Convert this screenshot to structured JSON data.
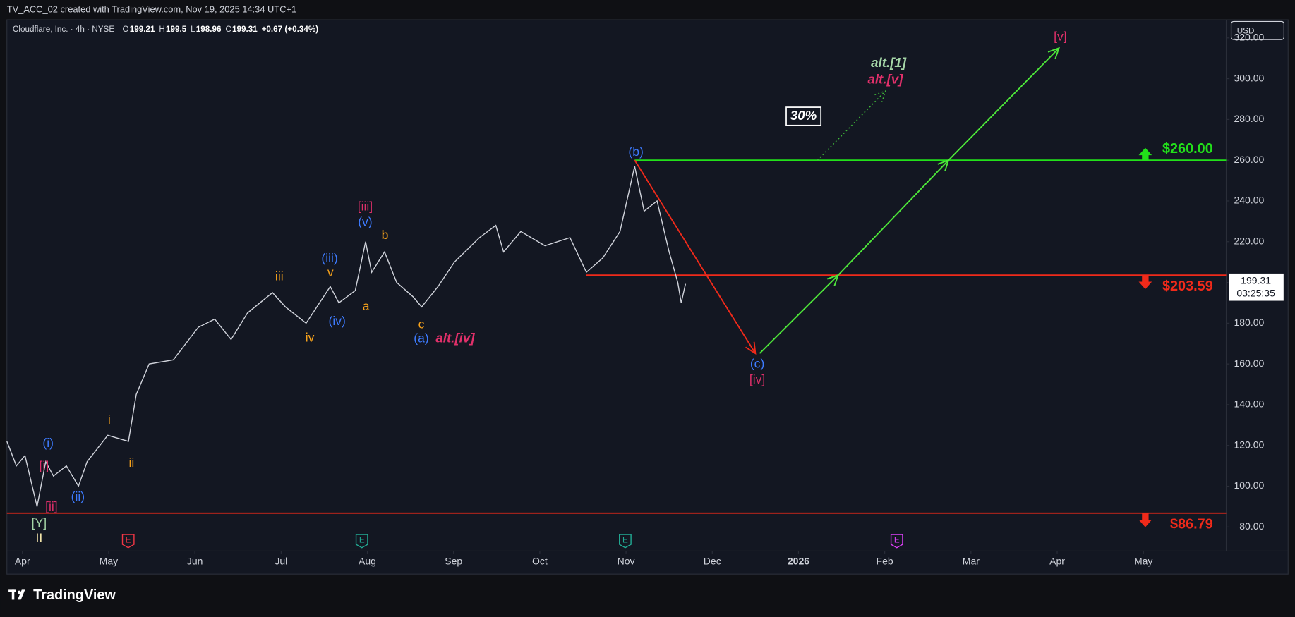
{
  "header": {
    "caption": "TV_ACC_02 created with TradingView.com, Nov 19, 2025 14:34 UTC+1",
    "brand": "TradingView",
    "currency": "USD"
  },
  "chart_data": {
    "type": "line",
    "symbol": "Cloudflare, Inc. · 4h · NYSE",
    "ohlc": [
      {
        "label": "O",
        "value": 199.21
      },
      {
        "label": "H",
        "value": 199.5
      },
      {
        "label": "L",
        "value": 198.96
      },
      {
        "label": "C",
        "value": 199.31
      }
    ],
    "change": "+0.67 (+0.34%)",
    "last_price": 199.31,
    "countdown": "03:25:35",
    "x": [
      -0.18,
      -0.07,
      0.03,
      0.17,
      0.27,
      0.36,
      0.51,
      0.65,
      0.75,
      0.99,
      1.23,
      1.32,
      1.47,
      1.75,
      2.04,
      2.23,
      2.42,
      2.61,
      2.9,
      3.05,
      3.29,
      3.57,
      3.67,
      3.86,
      3.98,
      4.05,
      4.2,
      4.34,
      4.53,
      4.63,
      4.82,
      5.01,
      5.3,
      5.49,
      5.58,
      5.78,
      6.06,
      6.35,
      6.54,
      6.73,
      6.93,
      7.1,
      7.21,
      7.36,
      7.5,
      7.6,
      7.64,
      7.69
    ],
    "series": [
      {
        "color": "#d1d4dc",
        "values": [
          122,
          110,
          115,
          90,
          112,
          105,
          110,
          100,
          112,
          125,
          122,
          145,
          160,
          162,
          178,
          182,
          172,
          185,
          195,
          188,
          180,
          198,
          190,
          196,
          220,
          205,
          215,
          200,
          193,
          188,
          198,
          210,
          222,
          228,
          215,
          225,
          218,
          222,
          205,
          212,
          225,
          257,
          235,
          240,
          215,
          200,
          190,
          199.31
        ]
      }
    ],
    "xlim": [
      -0.18,
      13.96
    ],
    "ylim": [
      68.2,
      328.9
    ],
    "xticks": [
      {
        "value": 0,
        "label": "Apr"
      },
      {
        "value": 1,
        "label": "May"
      },
      {
        "value": 2,
        "label": "Jun"
      },
      {
        "value": 3,
        "label": "Jul"
      },
      {
        "value": 4,
        "label": "Aug"
      },
      {
        "value": 5,
        "label": "Sep"
      },
      {
        "value": 6,
        "label": "Oct"
      },
      {
        "value": 7,
        "label": "Nov"
      },
      {
        "value": 8,
        "label": "Dec"
      },
      {
        "value": 9,
        "label": "2026"
      },
      {
        "value": 10,
        "label": "Feb"
      },
      {
        "value": 11,
        "label": "Mar"
      },
      {
        "value": 12,
        "label": "Apr"
      },
      {
        "value": 13,
        "label": "May"
      }
    ],
    "yticks": [
      {
        "value": 80,
        "label": "80.00"
      },
      {
        "value": 100,
        "label": "100.00"
      },
      {
        "value": 120,
        "label": "120.00"
      },
      {
        "value": 140,
        "label": "140.00"
      },
      {
        "value": 160,
        "label": "160.00"
      },
      {
        "value": 180,
        "label": "180.00"
      },
      {
        "value": 200,
        "label": "200.00"
      },
      {
        "value": 220,
        "label": "220.00"
      },
      {
        "value": 240,
        "label": "240.00"
      },
      {
        "value": 260,
        "label": "260.00"
      },
      {
        "value": 280,
        "label": "280.00"
      },
      {
        "value": 300,
        "label": "300.00"
      },
      {
        "value": 320,
        "label": "320.00"
      }
    ],
    "levels": [
      {
        "value": 260,
        "label": "$260.00",
        "color": "#22e01a",
        "start": 7.1,
        "direction": "up"
      },
      {
        "value": 203.59,
        "label": "$203.59",
        "color": "#f02a1a",
        "start": 6.54,
        "direction": "down"
      },
      {
        "value": 86.79,
        "label": "$86.79",
        "color": "#f02a1a",
        "start": -0.18,
        "direction": "down"
      }
    ],
    "projections": [
      {
        "color": "#f02a1a",
        "x": [
          7.1,
          8.5
        ],
        "values": [
          260,
          165.2
        ],
        "style": "solid"
      },
      {
        "color": "#4ee83a",
        "x": [
          8.55,
          9.46,
          10.74,
          12.02
        ],
        "values": [
          165.2,
          203.59,
          260,
          315
        ],
        "style": "solid"
      },
      {
        "color": "#3fb83a",
        "x": [
          9.22,
          10.01
        ],
        "values": [
          260,
          294
        ],
        "style": "dotted"
      }
    ],
    "annotations": [
      {
        "text": "(b)",
        "color": "#3d7bff"
      },
      {
        "text": "(a)",
        "color": "#3d7bff"
      },
      {
        "text": "alt.[iv]",
        "color": "#e0306a",
        "italic": true
      },
      {
        "text": "(c)",
        "color": "#3d7bff"
      },
      {
        "text": "[iv]",
        "color": "#e0306a"
      },
      {
        "text": "[v]",
        "color": "#e0306a"
      },
      {
        "text": "alt.[1]",
        "color": "#a5d6a7",
        "italic": true
      },
      {
        "text": "alt.[v]",
        "color": "#e0306a",
        "italic": true
      },
      {
        "text": "30%",
        "color": "#ffffff",
        "italic": true,
        "boxed": true
      },
      {
        "text": "[iii]",
        "color": "#e0306a"
      },
      {
        "text": "(v)",
        "color": "#3d7bff"
      },
      {
        "text": "b",
        "color": "#f7a21b"
      },
      {
        "text": "a",
        "color": "#f7a21b"
      },
      {
        "text": "c",
        "color": "#f7a21b"
      },
      {
        "text": "(iii)",
        "color": "#3d7bff"
      },
      {
        "text": "v",
        "color": "#f7a21b"
      },
      {
        "text": "(iv)",
        "color": "#3d7bff"
      },
      {
        "text": "iii",
        "color": "#f7a21b"
      },
      {
        "text": "iv",
        "color": "#f7a21b"
      },
      {
        "text": "i",
        "color": "#f7a21b"
      },
      {
        "text": "ii",
        "color": "#f7a21b"
      },
      {
        "text": "(i)",
        "color": "#3d7bff"
      },
      {
        "text": "[i]",
        "color": "#e0306a"
      },
      {
        "text": "(ii)",
        "color": "#3d7bff"
      },
      {
        "text": "[ii]",
        "color": "#e0306a"
      },
      {
        "text": "[Y]",
        "color": "#a5d6a7"
      },
      {
        "text": "II",
        "color": "#f3e5ab"
      }
    ],
    "events": [
      {
        "text": "E",
        "color": "#f23645"
      },
      {
        "text": "E",
        "color": "#22ab94"
      },
      {
        "text": "E",
        "color": "#22ab94"
      },
      {
        "text": "E",
        "color": "#e040fb"
      }
    ]
  }
}
